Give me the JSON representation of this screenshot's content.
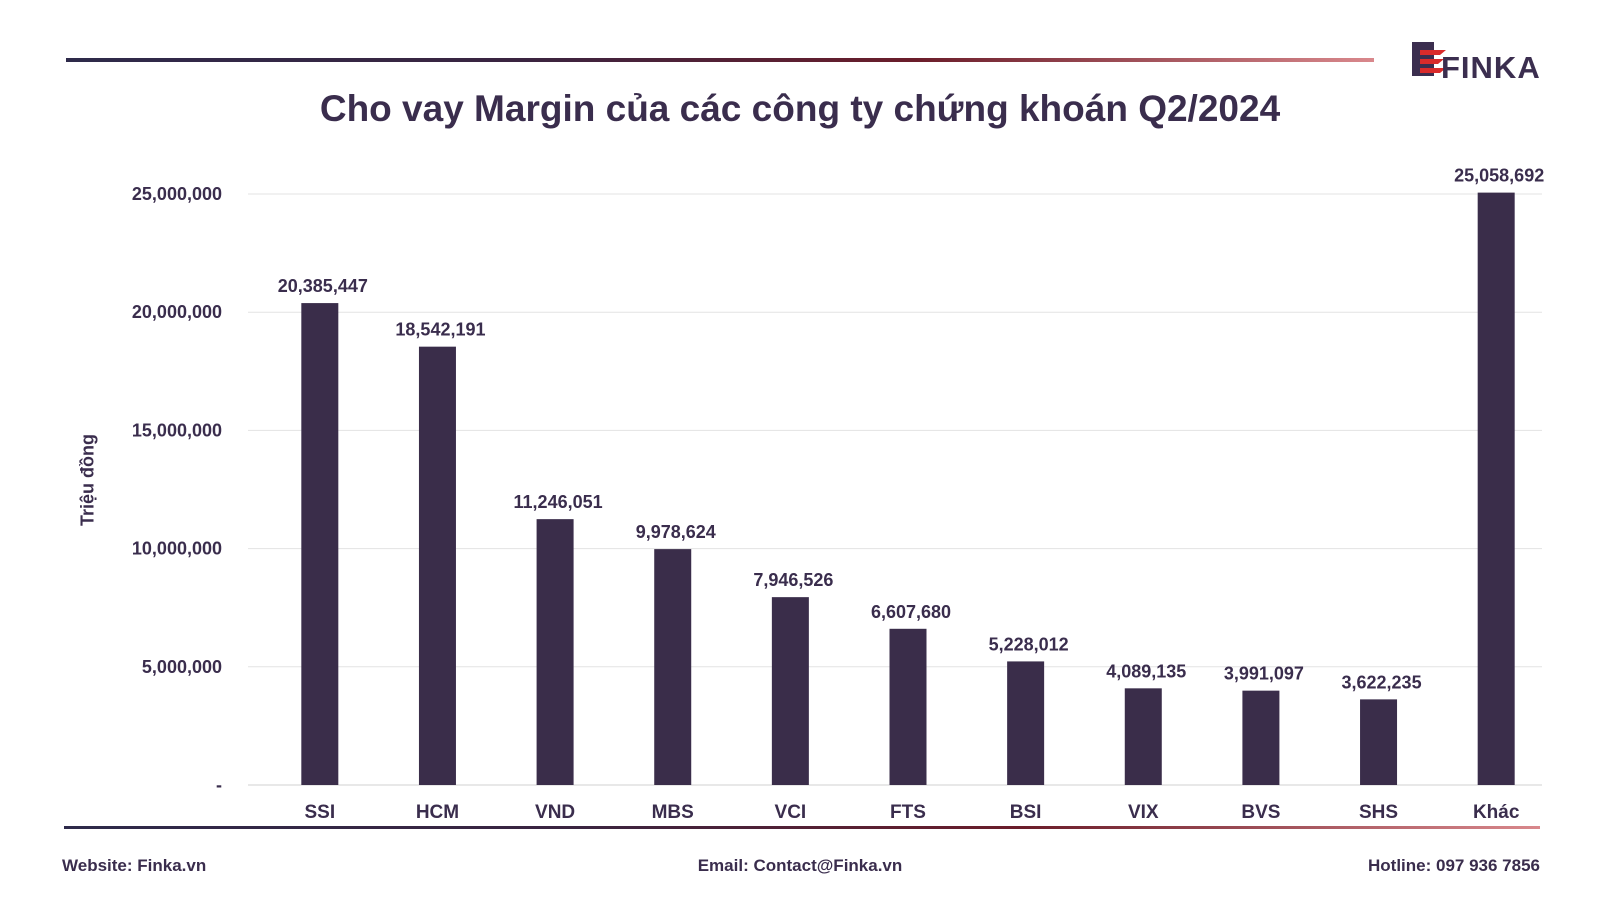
{
  "title": "Cho vay Margin của các công ty chứng khoán Q2/2024",
  "brand": {
    "name": "FINKA",
    "color_primary": "#3b2e4f",
    "color_accent": "#d92b2b"
  },
  "footer": {
    "website": "Website: Finka.vn",
    "email": "Email: Contact@Finka.vn",
    "hotline": "Hotline: 097 936 7856"
  },
  "chart_data": {
    "type": "bar",
    "title": "Cho vay Margin của các công ty chứng khoán Q2/2024",
    "xlabel": "",
    "ylabel": "Triệu đồng",
    "categories": [
      "SSI",
      "HCM",
      "VND",
      "MBS",
      "VCI",
      "FTS",
      "BSI",
      "VIX",
      "BVS",
      "SHS",
      "Khác"
    ],
    "values": [
      20385447,
      18542191,
      11246051,
      9978624,
      7946526,
      6607680,
      5228012,
      4089135,
      3991097,
      3622235,
      25058692
    ],
    "value_labels": [
      "20,385,447",
      "18,542,191",
      "11,246,051",
      "9,978,624",
      "7,946,526",
      "6,607,680",
      "5,228,012",
      "4,089,135",
      "3,991,097",
      "3,622,235",
      "25,058,692"
    ],
    "ylim": [
      0,
      25000000
    ],
    "yticks": [
      0,
      5000000,
      10000000,
      15000000,
      20000000,
      25000000
    ],
    "ytick_labels": [
      "-",
      "5,000,000",
      "10,000,000",
      "15,000,000",
      "20,000,000",
      "25,000,000"
    ],
    "grid": true,
    "bar_color": "#3a2d4a"
  }
}
